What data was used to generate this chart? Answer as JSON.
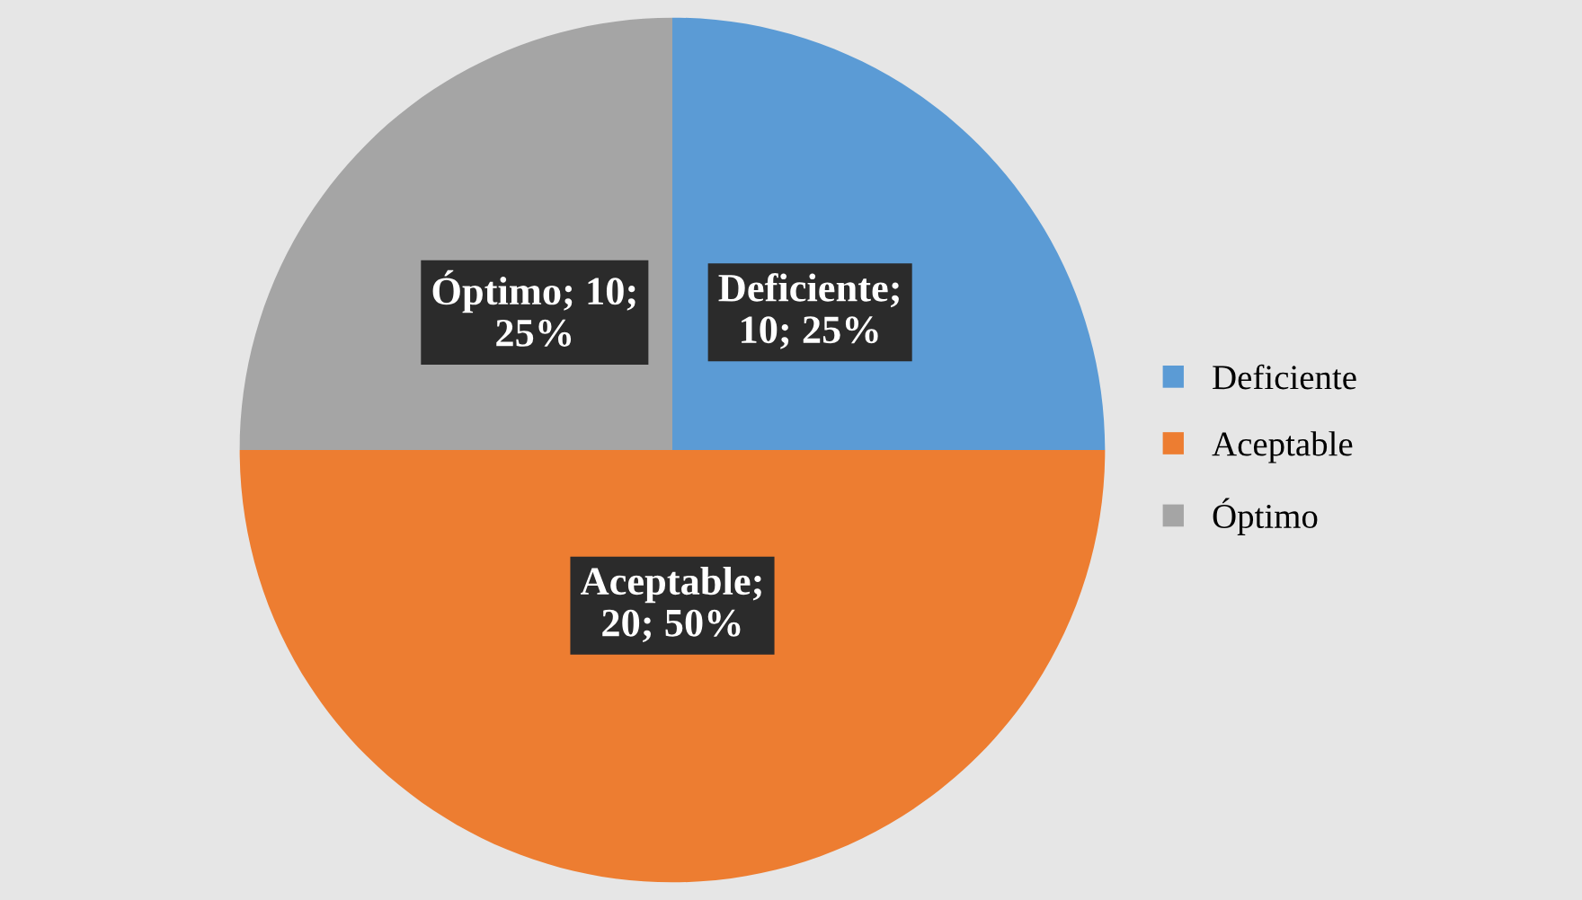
{
  "chart_data": {
    "type": "pie",
    "categories": [
      "Deficiente",
      "Aceptable",
      "Óptimo"
    ],
    "values": [
      10,
      20,
      10
    ],
    "colors": [
      "#5b9bd5",
      "#ed7d31",
      "#a5a5a5"
    ],
    "value_labels": [
      "Deficiente;\n10; 25%",
      "Aceptable;\n20; 50%",
      "Óptimo; 10;\n25%"
    ],
    "legend": "right"
  }
}
